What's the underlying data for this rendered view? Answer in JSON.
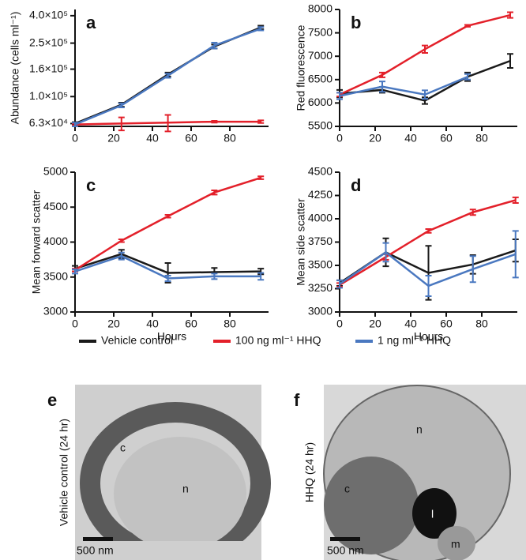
{
  "chart_data": [
    {
      "type": "line",
      "title": "a",
      "y_label": "Abundance (cells ml⁻¹)",
      "log_y": true,
      "x": [
        0,
        24,
        48,
        72,
        96
      ],
      "xlim": [
        0,
        100
      ],
      "xticks": [
        0,
        20,
        40,
        60,
        80
      ],
      "ylim": [
        60000,
        445000
      ],
      "yticks": [
        {
          "value": 63000,
          "label": "6.3×10⁴"
        },
        {
          "value": 100000,
          "label": "1.0×10⁵"
        },
        {
          "value": 160000,
          "label": "1.6×10⁵"
        },
        {
          "value": 250000,
          "label": "2.5×10⁵"
        },
        {
          "value": 400000,
          "label": "4.0×10⁵"
        }
      ],
      "series": [
        {
          "name": "Vehicle control",
          "color": "#1a1a1a",
          "values": [
            63000,
            87000,
            146000,
            236000,
            327000
          ],
          "errors": [
            1500,
            3000,
            5000,
            8000,
            10000
          ]
        },
        {
          "name": "100 ng ml⁻¹ HHQ",
          "color": "#e3202a",
          "values": [
            62000,
            63000,
            64000,
            65000,
            65000
          ],
          "errors": [
            1000,
            7000,
            9000,
            1000,
            1500
          ]
        },
        {
          "name": "1 ng ml⁻¹ HHQ",
          "color": "#4a78c0",
          "values": [
            62000,
            86000,
            143000,
            240000,
            320000
          ],
          "errors": [
            2000,
            3000,
            5000,
            12000,
            9000
          ]
        }
      ]
    },
    {
      "type": "line",
      "title": "b",
      "y_label": "Red fluorescence",
      "x": [
        0,
        24,
        48,
        72,
        96
      ],
      "xlim": [
        0,
        100
      ],
      "xticks": [
        0,
        20,
        40,
        60,
        80
      ],
      "ylim": [
        5500,
        8000
      ],
      "yticks": [
        5500,
        6000,
        6500,
        7000,
        7500,
        8000
      ],
      "series": [
        {
          "name": "Vehicle control",
          "color": "#1a1a1a",
          "values": [
            6200,
            6280,
            6050,
            6560,
            6900
          ],
          "errors": [
            80,
            60,
            70,
            90,
            150
          ]
        },
        {
          "name": "100 ng ml⁻¹ HHQ",
          "color": "#e3202a",
          "values": [
            6180,
            6600,
            7150,
            7650,
            7880
          ],
          "errors": [
            40,
            50,
            80,
            20,
            60
          ]
        },
        {
          "name": "1 ng ml⁻¹ HHQ",
          "color": "#4a78c0",
          "values": [
            6150,
            6350,
            6180,
            6560,
            null
          ],
          "errors": [
            70,
            110,
            90,
            60,
            null
          ]
        }
      ]
    },
    {
      "type": "line",
      "title": "c",
      "y_label": "Mean forward scatter",
      "x_label": "Hours",
      "x": [
        0,
        24,
        48,
        72,
        96
      ],
      "xlim": [
        0,
        100
      ],
      "xticks": [
        0,
        20,
        40,
        60,
        80
      ],
      "ylim": [
        3000,
        5000
      ],
      "yticks": [
        3000,
        3500,
        4000,
        4500,
        5000
      ],
      "series": [
        {
          "name": "Vehicle control",
          "color": "#1a1a1a",
          "values": [
            3620,
            3830,
            3560,
            3570,
            3580
          ],
          "errors": [
            40,
            60,
            140,
            60,
            40
          ]
        },
        {
          "name": "100 ng ml⁻¹ HHQ",
          "color": "#e3202a",
          "values": [
            3600,
            4020,
            4370,
            4710,
            4920
          ],
          "errors": [
            20,
            20,
            20,
            30,
            20
          ]
        },
        {
          "name": "1 ng ml⁻¹ HHQ",
          "color": "#4a78c0",
          "values": [
            3580,
            3800,
            3480,
            3510,
            3510
          ],
          "errors": [
            30,
            50,
            40,
            40,
            50
          ]
        }
      ]
    },
    {
      "type": "line",
      "title": "d",
      "y_label": "Mean side scatter",
      "x_label": "Hours",
      "x": [
        0,
        26,
        50,
        75,
        99
      ],
      "xlim": [
        0,
        100
      ],
      "xticks": [
        0,
        20,
        40,
        60,
        80
      ],
      "ylim": [
        3000,
        4500
      ],
      "yticks": [
        3000,
        3250,
        3500,
        3750,
        4000,
        4250,
        4500
      ],
      "series": [
        {
          "name": "Vehicle control",
          "color": "#1a1a1a",
          "values": [
            3310,
            3640,
            3420,
            3510,
            3660
          ],
          "errors": [
            30,
            150,
            290,
            100,
            120
          ]
        },
        {
          "name": "100 ng ml⁻¹ HHQ",
          "color": "#e3202a",
          "values": [
            3290,
            3590,
            3870,
            4070,
            4200
          ],
          "errors": [
            20,
            30,
            20,
            30,
            30
          ]
        },
        {
          "name": "1 ng ml⁻¹ HHQ",
          "color": "#4a78c0",
          "values": [
            3300,
            3640,
            3280,
            3460,
            3620
          ],
          "errors": [
            40,
            100,
            110,
            140,
            250
          ]
        }
      ]
    }
  ],
  "images": [
    {
      "panel": "e",
      "caption": "Vehicle control (24 hr)",
      "scale_bar": "500 nm",
      "labels": [
        "c",
        "n"
      ]
    },
    {
      "panel": "f",
      "caption": "HHQ (24 hr)",
      "scale_bar": "500 nm",
      "labels": [
        "n",
        "c",
        "l",
        "m"
      ]
    }
  ]
}
